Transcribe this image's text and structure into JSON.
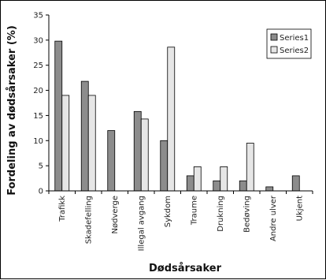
{
  "chart_data": {
    "type": "bar",
    "title": "",
    "xlabel": "Dødsårsaker",
    "ylabel": "Fordeling av dødsårsaker (%)",
    "ylim": [
      0,
      35
    ],
    "yticks": [
      0,
      5,
      10,
      15,
      20,
      25,
      30,
      35
    ],
    "grid": false,
    "legend_position": "top-right",
    "categories": [
      "Trafikk",
      "Skadefelling",
      "Nødverge",
      "Illegal avgang",
      "Sykdom",
      "Traume",
      "Drukning",
      "Bedøving",
      "Andre ulver",
      "Ukjent"
    ],
    "series": [
      {
        "name": "Series1",
        "color": "#8c8c8c",
        "values": [
          29.8,
          21.8,
          12.0,
          15.8,
          10.0,
          3.0,
          2.0,
          2.0,
          0.8,
          3.0
        ]
      },
      {
        "name": "Series2",
        "color": "#e6e6e6",
        "values": [
          19.0,
          19.0,
          0,
          14.3,
          28.6,
          4.8,
          4.8,
          9.5,
          0,
          0
        ]
      }
    ]
  }
}
